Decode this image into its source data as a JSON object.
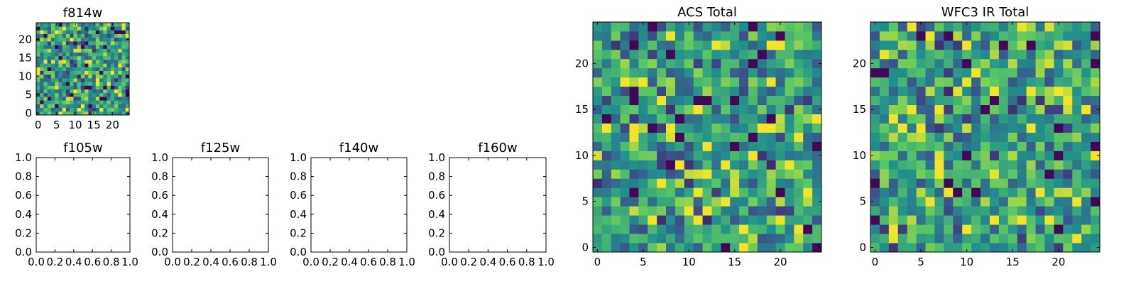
{
  "chart_data": [
    {
      "type": "heatmap",
      "title": "f814w",
      "grid_size": [
        25,
        25
      ],
      "xlim": [
        -0.5,
        24.5
      ],
      "ylim": [
        -0.5,
        24.5
      ],
      "xticks": [
        0,
        5,
        10,
        15,
        20
      ],
      "yticks": [
        0,
        5,
        10,
        15,
        20
      ],
      "colormap": "viridis",
      "seed": 814
    },
    {
      "type": "empty",
      "title": "f105w",
      "xlim": [
        0,
        1
      ],
      "ylim": [
        0,
        1
      ],
      "xticks": [
        "0.0",
        "0.2",
        "0.4",
        "0.6",
        "0.8",
        "1.0"
      ],
      "yticks": [
        "0.0",
        "0.2",
        "0.4",
        "0.6",
        "0.8",
        "1.0"
      ]
    },
    {
      "type": "empty",
      "title": "f125w",
      "xlim": [
        0,
        1
      ],
      "ylim": [
        0,
        1
      ],
      "xticks": [
        "0.0",
        "0.2",
        "0.4",
        "0.6",
        "0.8",
        "1.0"
      ],
      "yticks": [
        "0.0",
        "0.2",
        "0.4",
        "0.6",
        "0.8",
        "1.0"
      ]
    },
    {
      "type": "empty",
      "title": "f140w",
      "xlim": [
        0,
        1
      ],
      "ylim": [
        0,
        1
      ],
      "xticks": [
        "0.0",
        "0.2",
        "0.4",
        "0.6",
        "0.8",
        "1.0"
      ],
      "yticks": [
        "0.0",
        "0.2",
        "0.4",
        "0.6",
        "0.8",
        "1.0"
      ]
    },
    {
      "type": "empty",
      "title": "f160w",
      "xlim": [
        0,
        1
      ],
      "ylim": [
        0,
        1
      ],
      "xticks": [
        "0.0",
        "0.2",
        "0.4",
        "0.6",
        "0.8",
        "1.0"
      ],
      "yticks": [
        "0.0",
        "0.2",
        "0.4",
        "0.6",
        "0.8",
        "1.0"
      ]
    },
    {
      "type": "heatmap",
      "title": "ACS Total",
      "grid_size": [
        25,
        25
      ],
      "xlim": [
        -0.5,
        24.5
      ],
      "ylim": [
        -0.5,
        24.5
      ],
      "xticks": [
        0,
        5,
        10,
        15,
        20
      ],
      "yticks": [
        0,
        5,
        10,
        15,
        20
      ],
      "colormap": "viridis",
      "seed": 1234
    },
    {
      "type": "heatmap",
      "title": "WFC3 IR Total",
      "grid_size": [
        25,
        25
      ],
      "xlim": [
        -0.5,
        24.5
      ],
      "ylim": [
        -0.5,
        24.5
      ],
      "xticks": [
        0,
        5,
        10,
        15,
        20
      ],
      "yticks": [
        0,
        5,
        10,
        15,
        20
      ],
      "colormap": "viridis",
      "seed": 3160
    }
  ]
}
